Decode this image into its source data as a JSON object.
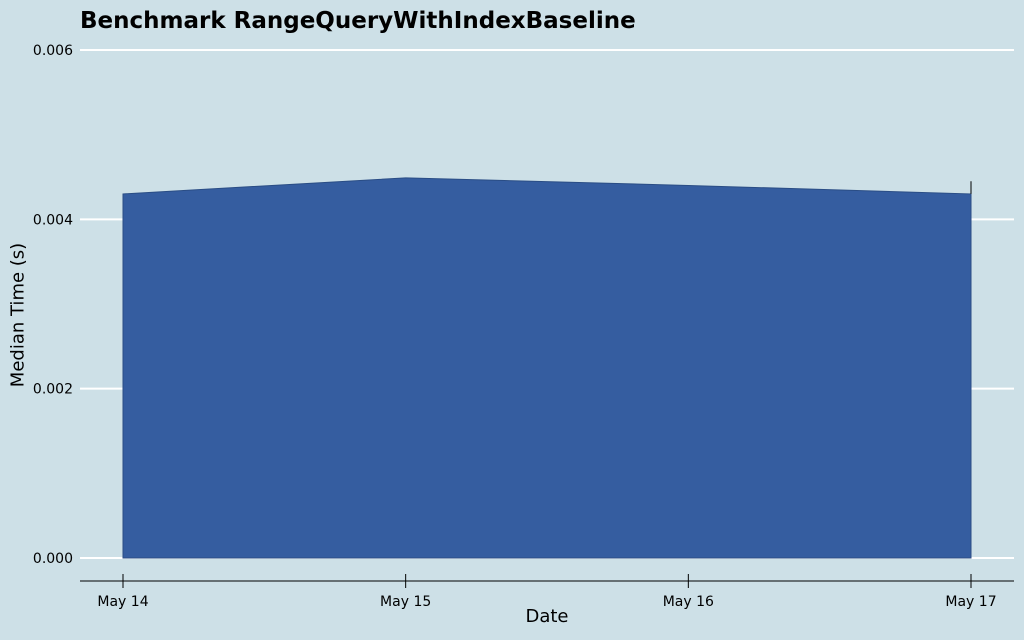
{
  "chart_data": {
    "type": "area",
    "title": "Benchmark RangeQueryWithIndexBaseline",
    "xlabel": "Date",
    "ylabel": "Median Time (s)",
    "x": [
      "May 14",
      "May 15",
      "May 16",
      "May 17"
    ],
    "x_ticks": [
      "May 14",
      "May 15",
      "May 16",
      "May 17"
    ],
    "y_ticks": [
      "0.000",
      "0.002",
      "0.004",
      "0.006"
    ],
    "y_tick_values": [
      0,
      0.002,
      0.004,
      0.006
    ],
    "ylim": [
      0,
      0.006
    ],
    "series": [
      {
        "values": [
          0.0043,
          0.00449,
          0.0044,
          0.0043
        ]
      }
    ],
    "error_bar_last": [
      0.0043,
      0.00445
    ],
    "grid": "horizontal",
    "colors": {
      "background": "#cde0e7",
      "area_fill": "#355da0",
      "gridline": "#ffffff",
      "axis": "#000000"
    }
  }
}
